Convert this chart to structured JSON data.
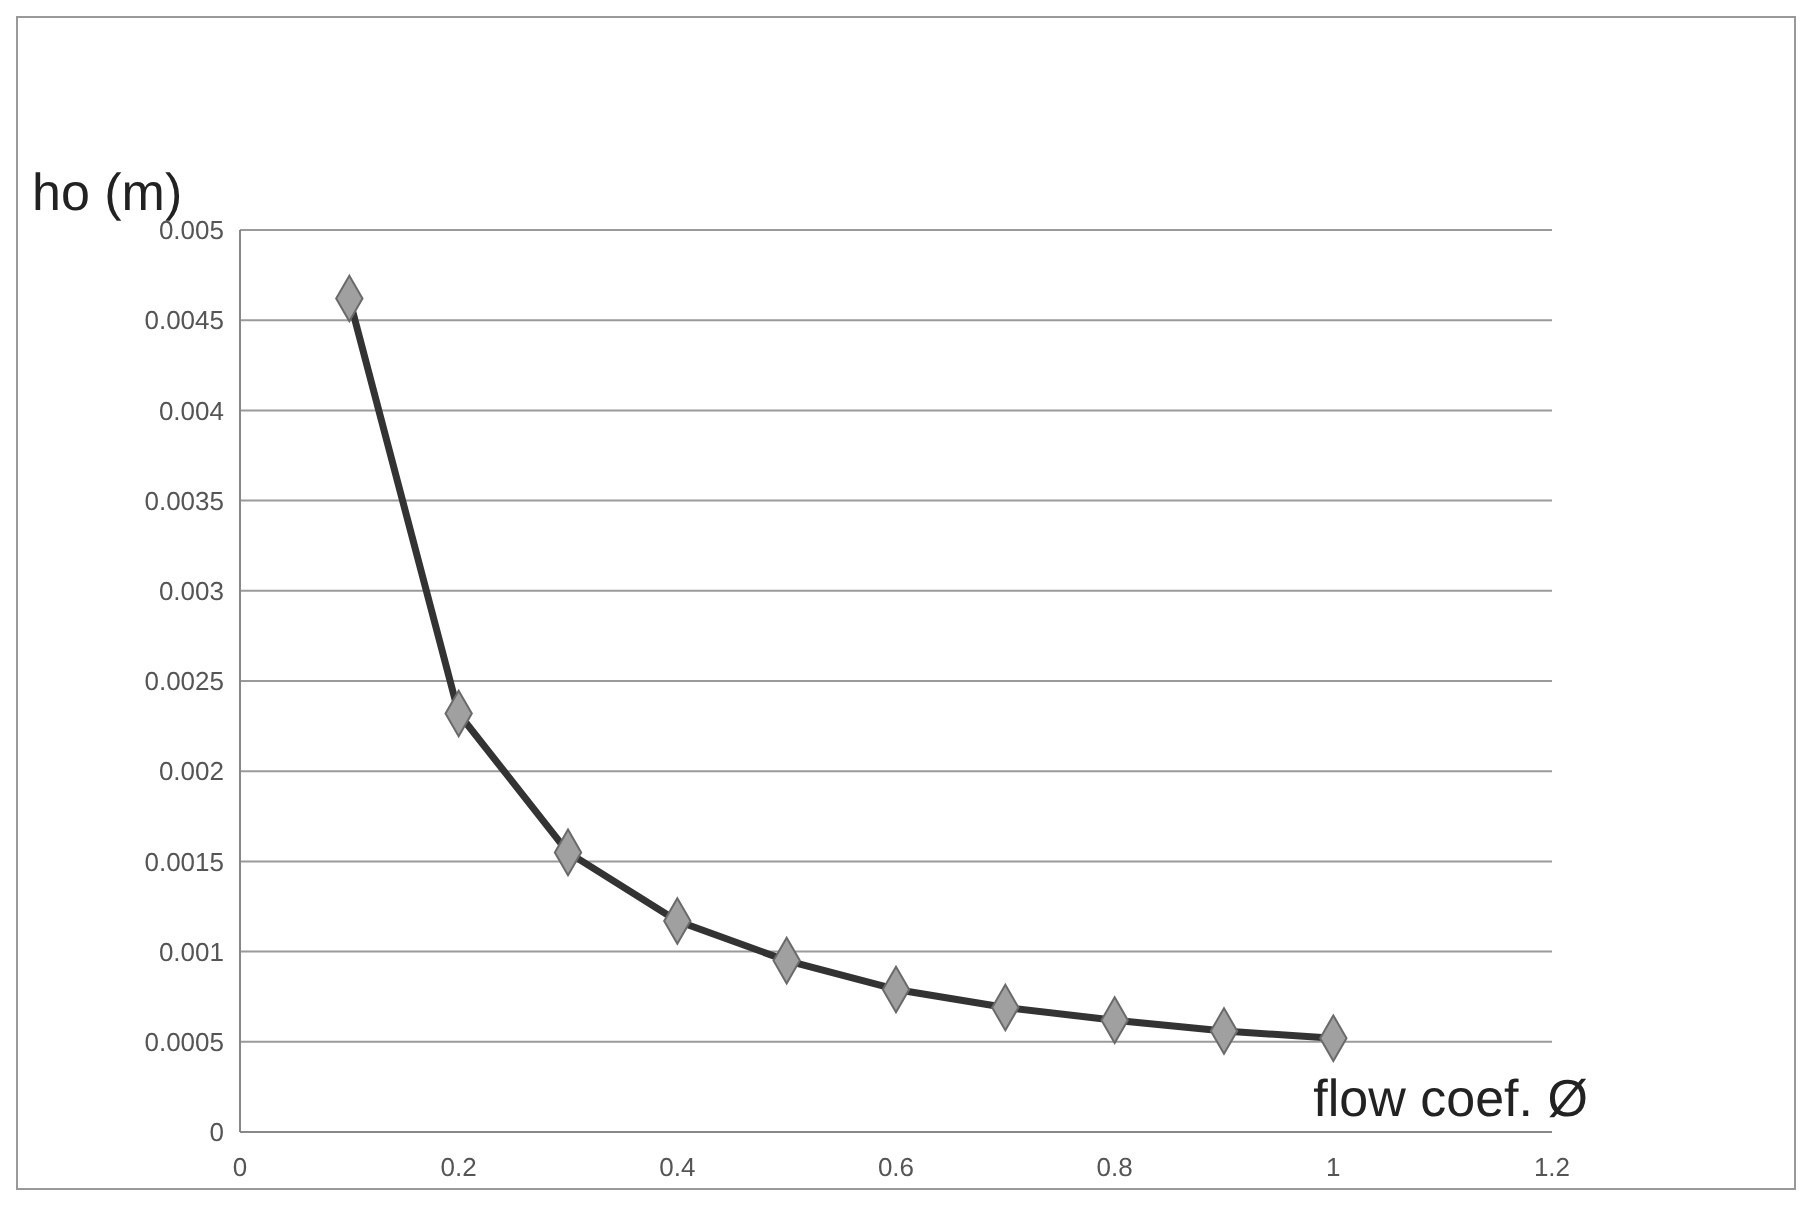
{
  "chart_data": {
    "type": "line",
    "xlabel": "flow coef. Ø",
    "ylabel": "ho (m)",
    "x": [
      0.1,
      0.2,
      0.3,
      0.4,
      0.5,
      0.6,
      0.7,
      0.8,
      0.9,
      1
    ],
    "series": [
      {
        "color": "#333333",
        "values": [
          0.00462,
          0.00232,
          0.00155,
          0.00117,
          0.00095,
          0.00079,
          0.00069,
          0.00062,
          0.00056,
          0.00052
        ]
      }
    ],
    "xlim": [
      0,
      1.2
    ],
    "xticks": [
      0,
      0.2,
      0.4,
      0.6,
      0.8,
      1,
      1.2
    ],
    "ylim": [
      0,
      0.005
    ],
    "yticks": [
      0,
      0.0005,
      0.001,
      0.0015,
      0.002,
      0.0025,
      0.003,
      0.0035,
      0.004,
      0.0045,
      0.005
    ],
    "grid": "y",
    "marker": "diamond",
    "line_style": "solid"
  }
}
